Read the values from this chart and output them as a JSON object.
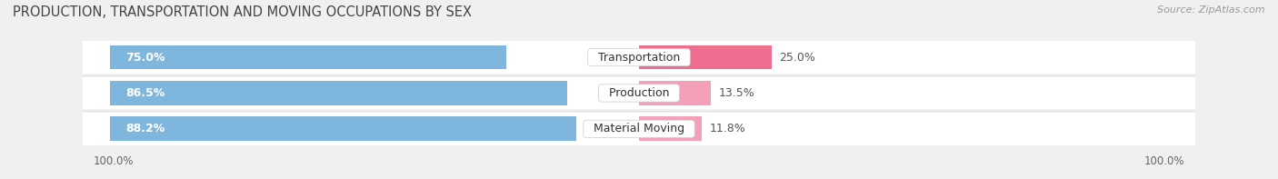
{
  "title": "PRODUCTION, TRANSPORTATION AND MOVING OCCUPATIONS BY SEX",
  "source": "Source: ZipAtlas.com",
  "categories": [
    "Material Moving",
    "Production",
    "Transportation"
  ],
  "male_values": [
    88.2,
    86.5,
    75.0
  ],
  "female_values": [
    11.8,
    13.5,
    25.0
  ],
  "male_color": "#7eb6dd",
  "female_color_1": "#f4a0b8",
  "female_color_2": "#ee6e90",
  "female_colors": [
    "#f4a0b8",
    "#f4a0b8",
    "#ee6e90"
  ],
  "background_color": "#f0f0f0",
  "row_colors": [
    "#ffffff",
    "#f7f7f7",
    "#ffffff"
  ],
  "title_fontsize": 10.5,
  "source_fontsize": 8,
  "label_fontsize": 9,
  "value_fontsize": 9,
  "axis_label": "100.0%",
  "bar_height": 0.68,
  "row_sep_color": "#d8d8d8"
}
